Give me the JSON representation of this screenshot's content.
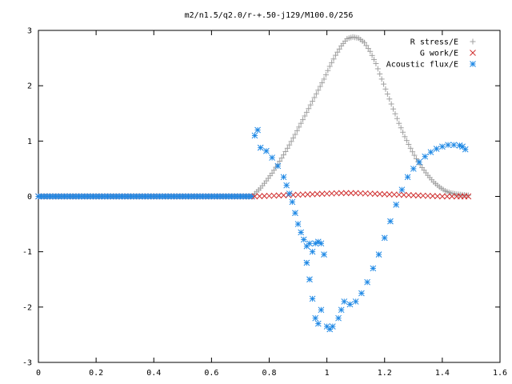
{
  "chart_data": {
    "type": "scatter",
    "title": "m2/n1.5/q2.0/r-+.50-j129/M100.0/256",
    "xlabel": "",
    "ylabel": "",
    "xlim": [
      0,
      1.6
    ],
    "ylim": [
      -3,
      3
    ],
    "x_ticks": [
      "0",
      "0.2",
      "0.4",
      "0.6",
      "0.8",
      "1",
      "1.2",
      "1.4",
      "1.6"
    ],
    "y_ticks": [
      "3",
      "2",
      "1",
      "0",
      "-1",
      "-2",
      "-3"
    ],
    "grid": false,
    "legend_position": "top-right",
    "series": [
      {
        "name": "R stress/E",
        "marker": "plus",
        "color": "#a0a0a0",
        "points": [
          [
            0.75,
            0.05
          ],
          [
            0.77,
            0.15
          ],
          [
            0.79,
            0.28
          ],
          [
            0.81,
            0.42
          ],
          [
            0.83,
            0.58
          ],
          [
            0.85,
            0.75
          ],
          [
            0.87,
            0.93
          ],
          [
            0.89,
            1.12
          ],
          [
            0.91,
            1.32
          ],
          [
            0.93,
            1.52
          ],
          [
            0.95,
            1.72
          ],
          [
            0.97,
            1.92
          ],
          [
            0.99,
            2.12
          ],
          [
            1.01,
            2.35
          ],
          [
            1.03,
            2.55
          ],
          [
            1.05,
            2.72
          ],
          [
            1.07,
            2.85
          ],
          [
            1.09,
            2.88
          ],
          [
            1.11,
            2.86
          ],
          [
            1.13,
            2.78
          ],
          [
            1.15,
            2.62
          ],
          [
            1.17,
            2.4
          ],
          [
            1.19,
            2.12
          ],
          [
            1.21,
            1.85
          ],
          [
            1.23,
            1.58
          ],
          [
            1.25,
            1.32
          ],
          [
            1.27,
            1.08
          ],
          [
            1.29,
            0.87
          ],
          [
            1.31,
            0.68
          ],
          [
            1.33,
            0.52
          ],
          [
            1.35,
            0.38
          ],
          [
            1.37,
            0.26
          ],
          [
            1.39,
            0.17
          ],
          [
            1.41,
            0.1
          ],
          [
            1.43,
            0.06
          ],
          [
            1.45,
            0.04
          ],
          [
            1.47,
            0.03
          ],
          [
            1.49,
            0.02
          ]
        ]
      },
      {
        "name": "G work/E",
        "marker": "cross",
        "color": "#d03030",
        "points": [
          [
            0.75,
            0.0
          ],
          [
            0.8,
            0.01
          ],
          [
            0.85,
            0.02
          ],
          [
            0.9,
            0.03
          ],
          [
            0.95,
            0.04
          ],
          [
            1.0,
            0.05
          ],
          [
            1.05,
            0.06
          ],
          [
            1.1,
            0.06
          ],
          [
            1.15,
            0.05
          ],
          [
            1.2,
            0.04
          ],
          [
            1.25,
            0.03
          ],
          [
            1.3,
            0.02
          ],
          [
            1.35,
            0.01
          ],
          [
            1.4,
            0.0
          ],
          [
            1.45,
            0.0
          ],
          [
            1.49,
            0.0
          ]
        ]
      },
      {
        "name": "Acoustic flux/E",
        "marker": "star",
        "color": "#1e88e5",
        "points": [
          [
            0.75,
            1.1
          ],
          [
            0.76,
            1.2
          ],
          [
            0.77,
            0.88
          ],
          [
            0.79,
            0.82
          ],
          [
            0.81,
            0.7
          ],
          [
            0.83,
            0.55
          ],
          [
            0.85,
            0.35
          ],
          [
            0.86,
            0.2
          ],
          [
            0.87,
            0.05
          ],
          [
            0.88,
            -0.1
          ],
          [
            0.89,
            -0.3
          ],
          [
            0.9,
            -0.5
          ],
          [
            0.91,
            -0.65
          ],
          [
            0.92,
            -0.78
          ],
          [
            0.93,
            -0.9
          ],
          [
            0.94,
            -0.85
          ],
          [
            0.95,
            -1.0
          ],
          [
            0.96,
            -0.85
          ],
          [
            0.97,
            -0.82
          ],
          [
            0.98,
            -0.85
          ],
          [
            0.99,
            -1.05
          ],
          [
            0.93,
            -1.2
          ],
          [
            0.94,
            -1.5
          ],
          [
            0.95,
            -1.85
          ],
          [
            0.96,
            -2.2
          ],
          [
            0.97,
            -2.3
          ],
          [
            0.98,
            -2.05
          ],
          [
            1.0,
            -2.35
          ],
          [
            1.01,
            -2.4
          ],
          [
            1.02,
            -2.35
          ],
          [
            1.04,
            -2.2
          ],
          [
            1.05,
            -2.05
          ],
          [
            1.06,
            -1.9
          ],
          [
            1.08,
            -1.95
          ],
          [
            1.1,
            -1.9
          ],
          [
            1.12,
            -1.75
          ],
          [
            1.14,
            -1.55
          ],
          [
            1.16,
            -1.3
          ],
          [
            1.18,
            -1.05
          ],
          [
            1.2,
            -0.75
          ],
          [
            1.22,
            -0.45
          ],
          [
            1.24,
            -0.15
          ],
          [
            1.26,
            0.12
          ],
          [
            1.28,
            0.35
          ],
          [
            1.3,
            0.5
          ],
          [
            1.32,
            0.62
          ],
          [
            1.34,
            0.72
          ],
          [
            1.36,
            0.8
          ],
          [
            1.38,
            0.86
          ],
          [
            1.4,
            0.9
          ],
          [
            1.42,
            0.93
          ],
          [
            1.44,
            0.93
          ],
          [
            1.46,
            0.92
          ],
          [
            1.47,
            0.9
          ],
          [
            1.48,
            0.85
          ]
        ]
      }
    ],
    "flat_segment": {
      "x_from": 0.0,
      "x_to": 0.75,
      "y": 0.0,
      "step": 0.01
    }
  }
}
